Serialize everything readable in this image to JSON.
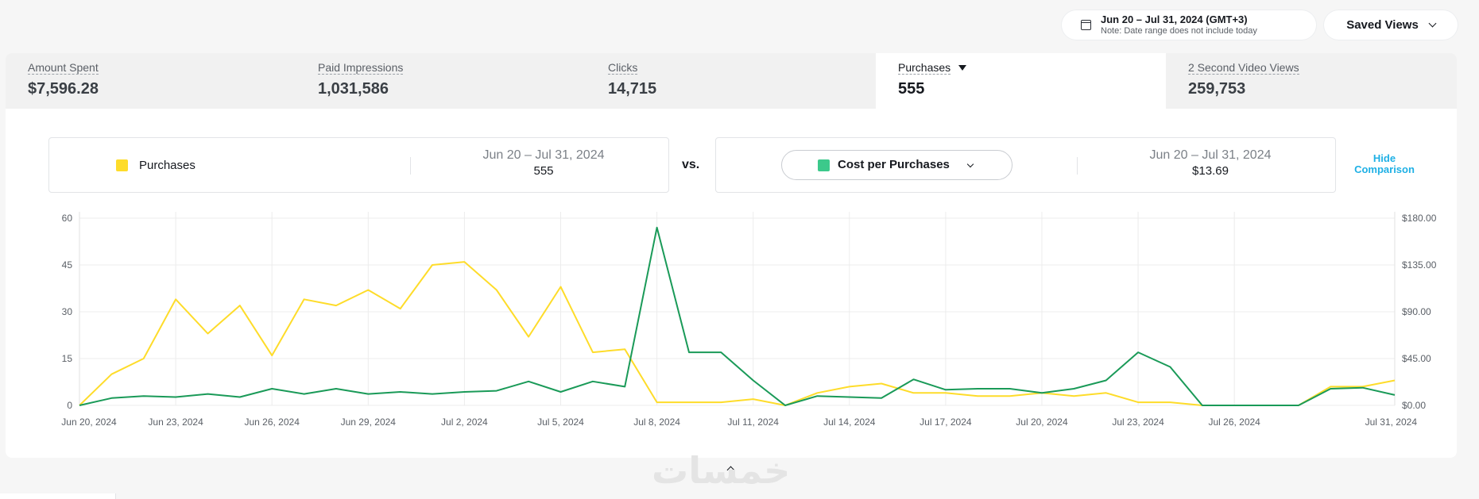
{
  "header": {
    "date_range": "Jun 20 – Jul 31, 2024 (GMT+3)",
    "date_note": "Note: Date range does not include today",
    "saved_views": "Saved Views"
  },
  "tabs": [
    {
      "label": "Amount Spent",
      "value": "$7,596.28",
      "active": false
    },
    {
      "label": "Paid Impressions",
      "value": "1,031,586",
      "active": false
    },
    {
      "label": "Clicks",
      "value": "14,715",
      "active": false
    },
    {
      "label": "Purchases",
      "value": "555",
      "active": true
    },
    {
      "label": "2 Second Video Views",
      "value": "259,753",
      "active": false
    }
  ],
  "comparison": {
    "left": {
      "metric": "Purchases",
      "date": "Jun 20 – Jul 31, 2024",
      "value": "555",
      "color": "#fedc2a"
    },
    "vs": "vs.",
    "right": {
      "metric": "Cost per Purchases",
      "date": "Jun 20 – Jul 31, 2024",
      "value": "$13.69",
      "color": "#3cc98b"
    },
    "hide_label": "Hide Comparison"
  },
  "watermark": "خمسات",
  "chart_data": {
    "type": "line",
    "grid": true,
    "x": [
      "Jun 20, 2024",
      "Jun 21, 2024",
      "Jun 22, 2024",
      "Jun 23, 2024",
      "Jun 24, 2024",
      "Jun 25, 2024",
      "Jun 26, 2024",
      "Jun 27, 2024",
      "Jun 28, 2024",
      "Jun 29, 2024",
      "Jun 30, 2024",
      "Jul 1, 2024",
      "Jul 2, 2024",
      "Jul 3, 2024",
      "Jul 4, 2024",
      "Jul 5, 2024",
      "Jul 6, 2024",
      "Jul 7, 2024",
      "Jul 8, 2024",
      "Jul 9, 2024",
      "Jul 10, 2024",
      "Jul 11, 2024",
      "Jul 12, 2024",
      "Jul 13, 2024",
      "Jul 14, 2024",
      "Jul 15, 2024",
      "Jul 16, 2024",
      "Jul 17, 2024",
      "Jul 18, 2024",
      "Jul 19, 2024",
      "Jul 20, 2024",
      "Jul 21, 2024",
      "Jul 22, 2024",
      "Jul 23, 2024",
      "Jul 24, 2024",
      "Jul 25, 2024",
      "Jul 26, 2024",
      "Jul 27, 2024",
      "Jul 28, 2024",
      "Jul 29, 2024",
      "Jul 30, 2024",
      "Jul 31, 2024"
    ],
    "x_tick_labels": [
      "Jun 20, 2024",
      "Jun 23, 2024",
      "Jun 26, 2024",
      "Jun 29, 2024",
      "Jul 2, 2024",
      "Jul 5, 2024",
      "Jul 8, 2024",
      "Jul 11, 2024",
      "Jul 14, 2024",
      "Jul 17, 2024",
      "Jul 20, 2024",
      "Jul 23, 2024",
      "Jul 26, 2024",
      "Jul 31, 2024"
    ],
    "y_left": {
      "ticks": [
        "0",
        "15",
        "30",
        "45",
        "60"
      ],
      "range": [
        0,
        60
      ]
    },
    "y_right": {
      "ticks": [
        "$0.00",
        "$45.00",
        "$90.00",
        "$135.00",
        "$180.00"
      ],
      "range": [
        0,
        180
      ]
    },
    "series": [
      {
        "name": "Purchases",
        "axis": "left",
        "color": "#fedc2a",
        "values": [
          0,
          10,
          15,
          34,
          23,
          32,
          16,
          34,
          32,
          37,
          31,
          45,
          46,
          37,
          22,
          38,
          17,
          18,
          1,
          1,
          1,
          2,
          0,
          4,
          6,
          7,
          4,
          4,
          3,
          3,
          4,
          3,
          4,
          1,
          1,
          0,
          0,
          0,
          0,
          6,
          6,
          8
        ]
      },
      {
        "name": "Cost per Purchases",
        "axis": "right",
        "color": "#1a9a58",
        "values": [
          0,
          7,
          9,
          8,
          11,
          8,
          16,
          11,
          16,
          11,
          13,
          11,
          13,
          14,
          23,
          13,
          23,
          18,
          171,
          51,
          51,
          24,
          0,
          9,
          8,
          7,
          25,
          15,
          16,
          16,
          12,
          16,
          24,
          51,
          37,
          0,
          0,
          0,
          0,
          16,
          17,
          10
        ]
      }
    ]
  }
}
